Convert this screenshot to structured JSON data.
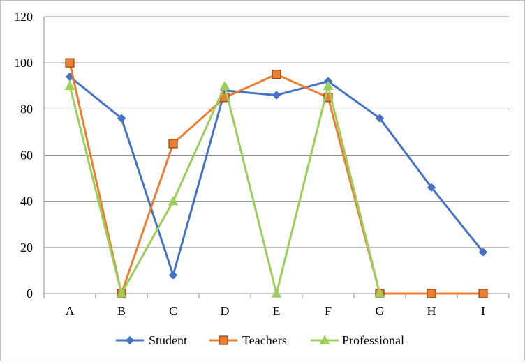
{
  "chart_data": {
    "type": "line",
    "categories": [
      "A",
      "B",
      "C",
      "D",
      "E",
      "F",
      "G",
      "H",
      "I"
    ],
    "ylim": [
      0,
      120
    ],
    "yticks": [
      0,
      20,
      40,
      60,
      80,
      100,
      120
    ],
    "grid": true,
    "legend_position": "bottom",
    "series": [
      {
        "name": "Student",
        "color": "#4472c4",
        "marker": "diamond",
        "values": [
          94,
          76,
          8,
          88,
          86,
          92,
          76,
          46,
          18
        ]
      },
      {
        "name": "Teachers",
        "color": "#ed7d31",
        "marker": "square",
        "values": [
          100,
          0,
          65,
          85,
          95,
          85,
          0,
          0,
          0
        ]
      },
      {
        "name": "Professional",
        "color": "#9bcf5a",
        "marker": "triangle",
        "values": [
          90,
          0,
          40,
          90,
          0,
          90,
          0,
          null,
          null
        ]
      }
    ]
  }
}
